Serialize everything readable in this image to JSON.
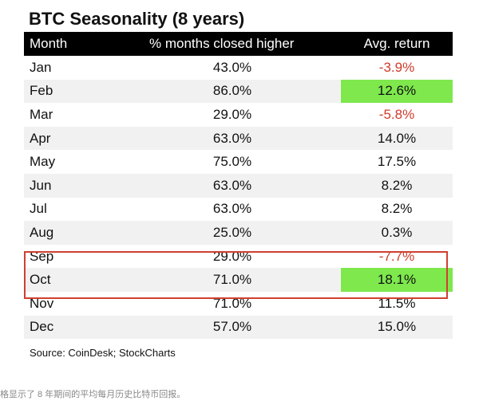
{
  "chart_data": {
    "type": "table",
    "title": "BTC Seasonality (8 years)",
    "columns": [
      "Month",
      "% months closed higher",
      "Avg. return"
    ],
    "rows": [
      {
        "month": "Jan",
        "pct_closed_higher": "43.0%",
        "avg_return": "-3.9%",
        "return_value": -3.9,
        "pct_value": 43.0
      },
      {
        "month": "Feb",
        "pct_closed_higher": "86.0%",
        "avg_return": "12.6%",
        "return_value": 12.6,
        "pct_value": 86.0
      },
      {
        "month": "Mar",
        "pct_closed_higher": "29.0%",
        "avg_return": "-5.8%",
        "return_value": -5.8,
        "pct_value": 29.0
      },
      {
        "month": "Apr",
        "pct_closed_higher": "63.0%",
        "avg_return": "14.0%",
        "return_value": 14.0,
        "pct_value": 63.0
      },
      {
        "month": "May",
        "pct_closed_higher": "75.0%",
        "avg_return": "17.5%",
        "return_value": 17.5,
        "pct_value": 75.0
      },
      {
        "month": "Jun",
        "pct_closed_higher": "63.0%",
        "avg_return": "8.2%",
        "return_value": 8.2,
        "pct_value": 63.0
      },
      {
        "month": "Jul",
        "pct_closed_higher": "63.0%",
        "avg_return": "8.2%",
        "return_value": 8.2,
        "pct_value": 63.0
      },
      {
        "month": "Aug",
        "pct_closed_higher": "25.0%",
        "avg_return": "0.3%",
        "return_value": 0.3,
        "pct_value": 25.0
      },
      {
        "month": "Sep",
        "pct_closed_higher": "29.0%",
        "avg_return": "-7.7%",
        "return_value": -7.7,
        "pct_value": 29.0
      },
      {
        "month": "Oct",
        "pct_closed_higher": "71.0%",
        "avg_return": "18.1%",
        "return_value": 18.1,
        "pct_value": 71.0
      },
      {
        "month": "Nov",
        "pct_closed_higher": "71.0%",
        "avg_return": "11.5%",
        "return_value": 11.5,
        "pct_value": 71.0
      },
      {
        "month": "Dec",
        "pct_closed_higher": "57.0%",
        "avg_return": "15.0%",
        "return_value": 15.0,
        "pct_value": 57.0
      }
    ],
    "highlighted_return_cells": [
      "Feb",
      "Oct"
    ],
    "highlighted_return_color": "#7ee84d",
    "negative_return_color": "#d03b2b",
    "outlined_rows": [
      "Aug",
      "Sep"
    ],
    "outline_color": "#d0402f",
    "source": "Source: CoinDesk; StockCharts"
  },
  "caption": "格显示了 8 年期间的平均每月历史比特币回报。"
}
